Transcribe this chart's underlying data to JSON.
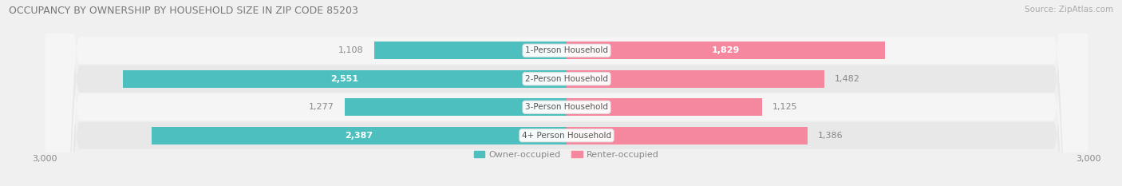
{
  "title": "OCCUPANCY BY OWNERSHIP BY HOUSEHOLD SIZE IN ZIP CODE 85203",
  "source": "Source: ZipAtlas.com",
  "categories": [
    "4+ Person Household",
    "3-Person Household",
    "2-Person Household",
    "1-Person Household"
  ],
  "owner_values": [
    2387,
    1277,
    2551,
    1108
  ],
  "renter_values": [
    1386,
    1125,
    1482,
    1829
  ],
  "owner_color": "#4dbfbf",
  "renter_color": "#f5879e",
  "axis_max": 3000,
  "bar_height": 0.62,
  "background_color": "#f0f0f0",
  "row_colors": [
    "#e8e8e8",
    "#f5f5f5",
    "#e8e8e8",
    "#f5f5f5"
  ]
}
